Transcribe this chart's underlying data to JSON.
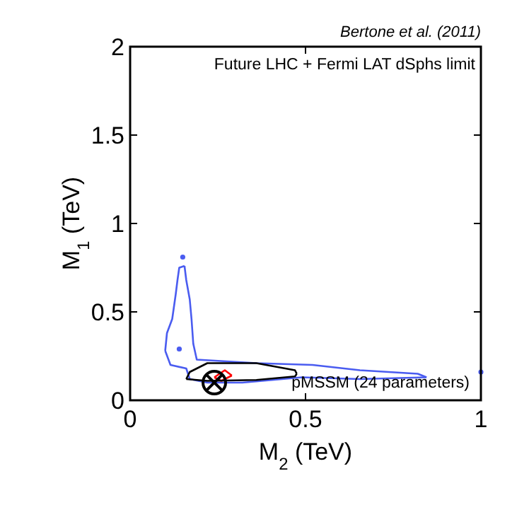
{
  "chart_data": {
    "type": "line",
    "xlabel": "M$_{2}$ (TeV)",
    "ylabel": "M$_{1}$ (TeV)",
    "annotations": [
      "Bertone et al. (2011)",
      "Future LHC + Fermi LAT dSphs limit",
      "pMSSM (24 parameters)"
    ],
    "xlim": [
      0,
      1
    ],
    "xticks": [
      0,
      0.5,
      1
    ],
    "ylim": [
      0,
      2
    ],
    "yticks": [
      0,
      0.5,
      1,
      1.5,
      2
    ],
    "series": [
      {
        "color": "#4a5cf0",
        "x": [
          0.1,
          0.105,
          0.12,
          0.13,
          0.135,
          0.14,
          0.155
        ],
        "values": [
          0.28,
          0.38,
          0.46,
          0.6,
          0.68,
          0.75,
          0.76
        ]
      },
      {
        "color": "#4a5cf0",
        "x": [
          0.155,
          0.16,
          0.17,
          0.175,
          0.18,
          0.19,
          0.36,
          0.52,
          0.655,
          0.82,
          0.845
        ],
        "values": [
          0.76,
          0.68,
          0.57,
          0.46,
          0.32,
          0.23,
          0.21,
          0.2,
          0.17,
          0.15,
          0.13
        ]
      },
      {
        "color": "#4a5cf0",
        "x": [
          0.1,
          0.115,
          0.16,
          0.17,
          0.22,
          0.32,
          0.49,
          0.655,
          0.845
        ],
        "values": [
          0.28,
          0.2,
          0.18,
          0.12,
          0.1,
          0.1,
          0.13,
          0.12,
          0.13
        ]
      },
      {
        "color": "#ff0000",
        "x": [
          0.24,
          0.27,
          0.29
        ],
        "values": [
          0.13,
          0.17,
          0.14
        ]
      },
      {
        "color": "#ff0000",
        "x": [
          0.24,
          0.26,
          0.29
        ],
        "values": [
          0.13,
          0.11,
          0.14
        ]
      },
      {
        "color": "#000000",
        "x": [
          0.16,
          0.17,
          0.22,
          0.36,
          0.47,
          0.475
        ],
        "values": [
          0.12,
          0.16,
          0.21,
          0.21,
          0.17,
          0.15
        ]
      },
      {
        "color": "#000000",
        "x": [
          0.16,
          0.22,
          0.36,
          0.47,
          0.475
        ],
        "values": [
          0.12,
          0.11,
          0.115,
          0.135,
          0.15
        ]
      },
      {
        "type": "scatter",
        "color": "#4a5cf0",
        "marker": "circle",
        "x": [
          0.15,
          0.14,
          1.0
        ],
        "values": [
          0.81,
          0.29,
          0.16
        ]
      },
      {
        "type": "scatter",
        "color": "#000000",
        "marker": "cross",
        "x": [
          0.24
        ],
        "values": [
          0.1
        ]
      }
    ]
  }
}
